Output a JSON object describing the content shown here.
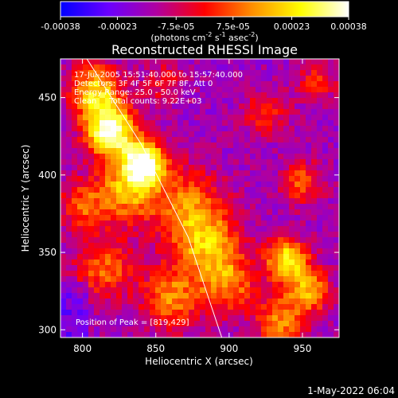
{
  "colorbar": {
    "tick_labels": [
      "-0.00038",
      "-0.00023",
      "-7.5e-05",
      "7.5e-05",
      "0.00023",
      "0.00038"
    ],
    "tick_values": [
      -0.00038,
      -0.00023,
      -7.5e-05,
      7.5e-05,
      0.00023,
      0.00038
    ],
    "range": [
      -0.00038,
      0.00038
    ],
    "units_label": "(photons cm",
    "units_exp1": "-2",
    "units_s": " s",
    "units_exp2": "-1",
    "units_asec": " asec",
    "units_exp3": "-2",
    "units_close": ")",
    "stops": [
      "#0000ff",
      "#6a00ff",
      "#b000a0",
      "#ff0000",
      "#ff9000",
      "#ffff00",
      "#ffffff"
    ]
  },
  "chart_data": {
    "type": "heatmap",
    "title": "Reconstructed RHESSI Image",
    "xlabel": "Heliocentric X (arcsec)",
    "ylabel": "Heliocentric Y (arcsec)",
    "xlim": [
      785,
      975
    ],
    "ylim": [
      295,
      475
    ],
    "x_ticks": [
      800,
      850,
      900,
      950
    ],
    "y_ticks": [
      300,
      350,
      400,
      450
    ],
    "x_tick_labels": [
      "800",
      "850",
      "900",
      "950"
    ],
    "y_tick_labels": [
      "300",
      "350",
      "400",
      "450"
    ],
    "annotations": [
      "17-Jul-2005 15:51:40.000 to 15:57:40.000",
      "Detectors: 3F 4F 5F 6F 7F 8F, Att 0",
      "Energy Range: 25.0 - 50.0 keV",
      "Clean     Total counts: 9.22E+03"
    ],
    "peak_label": "Position of Peak = [819,429]",
    "peak": [
      819,
      429
    ],
    "limb_points": [
      [
        803,
        475
      ],
      [
        840,
        420
      ],
      [
        872,
        360
      ],
      [
        895,
        295
      ]
    ]
  },
  "footer": {
    "timestamp": "1-May-2022 06:04"
  }
}
